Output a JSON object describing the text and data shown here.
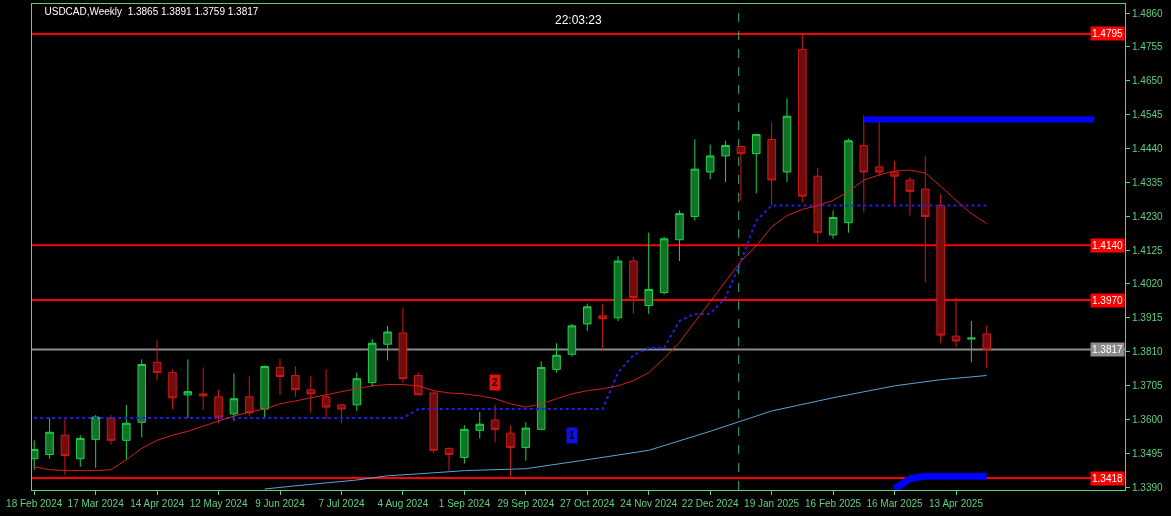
{
  "chart_data": {
    "type": "candlestick",
    "title": "USDCAD,Weekly  1.3865 1.3891 1.3759 1.3817",
    "annotations": [
      "22:03:23",
      {
        "text": "2",
        "x": "2024-09-15",
        "y": 1.3714
      },
      {
        "text": "1",
        "x": "2024-10-20",
        "y": 1.3551
      }
    ],
    "x": [
      "2024-02-18",
      "2024-02-25",
      "2024-03-03",
      "2024-03-10",
      "2024-03-17",
      "2024-03-24",
      "2024-03-31",
      "2024-04-07",
      "2024-04-14",
      "2024-04-21",
      "2024-04-28",
      "2024-05-05",
      "2024-05-12",
      "2024-05-19",
      "2024-05-26",
      "2024-06-02",
      "2024-06-09",
      "2024-06-16",
      "2024-06-23",
      "2024-06-30",
      "2024-07-07",
      "2024-07-14",
      "2024-07-21",
      "2024-07-28",
      "2024-08-04",
      "2024-08-11",
      "2024-08-18",
      "2024-08-25",
      "2024-09-01",
      "2024-09-08",
      "2024-09-15",
      "2024-09-22",
      "2024-09-29",
      "2024-10-06",
      "2024-10-13",
      "2024-10-20",
      "2024-10-27",
      "2024-11-03",
      "2024-11-10",
      "2024-11-17",
      "2024-11-24",
      "2024-12-01",
      "2024-12-08",
      "2024-12-15",
      "2024-12-22",
      "2024-12-29",
      "2025-01-05",
      "2025-01-12",
      "2025-01-19",
      "2025-01-26",
      "2025-02-02",
      "2025-02-09",
      "2025-02-16",
      "2025-02-23",
      "2025-03-02",
      "2025-03-09",
      "2025-03-16",
      "2025-03-23",
      "2025-03-30",
      "2025-04-06",
      "2025-04-13",
      "2025-04-20",
      "2025-04-27"
    ],
    "ohlc": [
      [
        1.3478,
        1.3535,
        1.3444,
        1.3507
      ],
      [
        1.3491,
        1.3604,
        1.3478,
        1.356
      ],
      [
        1.3551,
        1.3604,
        1.3428,
        1.3488
      ],
      [
        1.3478,
        1.3551,
        1.3453,
        1.3541
      ],
      [
        1.3538,
        1.3613,
        1.345,
        1.3607
      ],
      [
        1.3604,
        1.3613,
        1.3522,
        1.3535
      ],
      [
        1.3535,
        1.3645,
        1.3475,
        1.3588
      ],
      [
        1.3591,
        1.3786,
        1.3544,
        1.377
      ],
      [
        1.3777,
        1.3846,
        1.372,
        1.3745
      ],
      [
        1.3745,
        1.3755,
        1.3632,
        1.3667
      ],
      [
        1.3676,
        1.3786,
        1.3604,
        1.3686
      ],
      [
        1.3679,
        1.3761,
        1.3629,
        1.3673
      ],
      [
        1.367,
        1.3692,
        1.3588,
        1.3607
      ],
      [
        1.3617,
        1.3742,
        1.3595,
        1.3664
      ],
      [
        1.367,
        1.3733,
        1.361,
        1.362
      ],
      [
        1.3632,
        1.3767,
        1.3601,
        1.3764
      ],
      [
        1.3761,
        1.3789,
        1.3676,
        1.3733
      ],
      [
        1.3736,
        1.3764,
        1.367,
        1.3692
      ],
      [
        1.3692,
        1.3733,
        1.362,
        1.3679
      ],
      [
        1.367,
        1.3755,
        1.3601,
        1.3638
      ],
      [
        1.3645,
        1.3648,
        1.3588,
        1.3632
      ],
      [
        1.3645,
        1.3745,
        1.3626,
        1.3726
      ],
      [
        1.3714,
        1.3849,
        1.3701,
        1.3836
      ],
      [
        1.3833,
        1.389,
        1.3783,
        1.3871
      ],
      [
        1.3868,
        1.3946,
        1.3714,
        1.3726
      ],
      [
        1.3736,
        1.3745,
        1.3676,
        1.3676
      ],
      [
        1.3682,
        1.3689,
        1.3494,
        1.3504
      ],
      [
        1.351,
        1.3513,
        1.3441,
        1.3491
      ],
      [
        1.3482,
        1.3582,
        1.3463,
        1.3569
      ],
      [
        1.3566,
        1.3623,
        1.3541,
        1.3585
      ],
      [
        1.3598,
        1.3645,
        1.3529,
        1.3569
      ],
      [
        1.3557,
        1.3582,
        1.3422,
        1.3513
      ],
      [
        1.3513,
        1.3591,
        1.3472,
        1.3573
      ],
      [
        1.3569,
        1.378,
        1.3569,
        1.3761
      ],
      [
        1.3755,
        1.3836,
        1.3745,
        1.3799
      ],
      [
        1.3802,
        1.3896,
        1.3795,
        1.389
      ],
      [
        1.3896,
        1.3959,
        1.3874,
        1.3949
      ],
      [
        1.3921,
        1.3959,
        1.3817,
        1.3912
      ],
      [
        1.3915,
        1.4106,
        1.3905,
        1.4091
      ],
      [
        1.4091,
        1.4103,
        1.3927,
        1.3978
      ],
      [
        1.3953,
        1.4179,
        1.3927,
        1.4003
      ],
      [
        1.3993,
        1.4166,
        1.3987,
        1.416
      ],
      [
        1.4157,
        1.4248,
        1.4091,
        1.4238
      ],
      [
        1.4229,
        1.4468,
        1.4216,
        1.4376
      ],
      [
        1.4367,
        1.4452,
        1.4345,
        1.4417
      ],
      [
        1.4417,
        1.4464,
        1.4336,
        1.4449
      ],
      [
        1.4446,
        1.4449,
        1.4279,
        1.4424
      ],
      [
        1.4424,
        1.4486,
        1.4301,
        1.4483
      ],
      [
        1.4468,
        1.4521,
        1.4263,
        1.4342
      ],
      [
        1.4367,
        1.4596,
        1.4336,
        1.454
      ],
      [
        1.4747,
        1.4797,
        1.4273,
        1.4292
      ],
      [
        1.4354,
        1.438,
        1.4147,
        1.4179
      ],
      [
        1.4172,
        1.4248,
        1.416,
        1.4226
      ],
      [
        1.421,
        1.4471,
        1.4179,
        1.4464
      ],
      [
        1.4449,
        1.4543,
        1.4241,
        1.4367
      ],
      [
        1.4383,
        1.4524,
        1.4354,
        1.4367
      ],
      [
        1.4367,
        1.4402,
        1.426,
        1.4354
      ],
      [
        1.4342,
        1.4351,
        1.4232,
        1.4307
      ],
      [
        1.4314,
        1.4417,
        1.4025,
        1.4229
      ],
      [
        1.4263,
        1.4298,
        1.3836,
        1.3861
      ],
      [
        1.3858,
        1.3978,
        1.3824,
        1.3843
      ],
      [
        1.3849,
        1.3905,
        1.3777,
        1.3852
      ],
      [
        1.3865,
        1.3891,
        1.3759,
        1.3817
      ]
    ],
    "colors": [
      "#1fd14a",
      "#1fd14a",
      "#d01818",
      "#1fd14a",
      "#1fd14a",
      "#d01818",
      "#1fd14a",
      "#1fd14a",
      "#d01818",
      "#d01818",
      "#1fd14a",
      "#d01818",
      "#d01818",
      "#1fd14a",
      "#d01818",
      "#1fd14a",
      "#d01818",
      "#d01818",
      "#d01818",
      "#d01818",
      "#d01818",
      "#1fd14a",
      "#1fd14a",
      "#1fd14a",
      "#d01818",
      "#d01818",
      "#d01818",
      "#d01818",
      "#1fd14a",
      "#1fd14a",
      "#d01818",
      "#d01818",
      "#1fd14a",
      "#1fd14a",
      "#1fd14a",
      "#1fd14a",
      "#1fd14a",
      "#d01818",
      "#1fd14a",
      "#d01818",
      "#1fd14a",
      "#1fd14a",
      "#1fd14a",
      "#1fd14a",
      "#1fd14a",
      "#1fd14a",
      "#d01818",
      "#1fd14a",
      "#d01818",
      "#1fd14a",
      "#d01818",
      "#d01818",
      "#1fd14a",
      "#1fd14a",
      "#d01818",
      "#d01818",
      "#d01818",
      "#d01818",
      "#d01818",
      "#d01818",
      "#d01818",
      "#1fd14a",
      "#d01818"
    ],
    "series": [
      {
        "type": "line",
        "color": "#2020e0",
        "line_style": "dotted",
        "values": [
          1.3604,
          1.3604,
          1.3604,
          1.3604,
          1.3604,
          1.3604,
          1.3604,
          1.3604,
          1.3604,
          1.3604,
          1.3604,
          1.3604,
          1.3604,
          1.3604,
          1.3604,
          1.3604,
          1.3604,
          1.3604,
          1.3604,
          1.3604,
          1.3604,
          1.3604,
          1.3604,
          1.3604,
          1.3604,
          1.3632,
          1.3632,
          1.3632,
          1.3632,
          1.3632,
          1.3632,
          1.3632,
          1.3632,
          1.3632,
          1.3632,
          1.3632,
          1.3632,
          1.3632,
          1.3745,
          1.3799,
          1.3821,
          1.3821,
          1.3905,
          1.3927,
          1.3927,
          1.3978,
          1.4091,
          1.4216,
          1.4263,
          1.4263,
          1.4263,
          1.4263,
          1.4263,
          1.4263,
          1.4263,
          1.4263,
          1.4263,
          1.4263,
          1.4263,
          1.4263,
          1.4263,
          1.4263,
          1.4263
        ]
      },
      {
        "type": "line",
        "color": "#d42020",
        "values": [
          1.3453,
          1.3444,
          1.3441,
          1.3441,
          1.3441,
          1.3444,
          1.3475,
          1.351,
          1.3535,
          1.3551,
          1.3563,
          1.3579,
          1.3595,
          1.361,
          1.3623,
          1.3632,
          1.3648,
          1.3657,
          1.3667,
          1.3676,
          1.3686,
          1.3695,
          1.3704,
          1.3708,
          1.3708,
          1.3704,
          1.3689,
          1.3682,
          1.3679,
          1.3673,
          1.3664,
          1.3648,
          1.3638,
          1.3648,
          1.3664,
          1.3679,
          1.3689,
          1.3695,
          1.3704,
          1.372,
          1.3745,
          1.3789,
          1.3839,
          1.3902,
          1.3965,
          1.4028,
          1.4091,
          1.4138,
          1.4197,
          1.4232,
          1.4251,
          1.4263,
          1.4279,
          1.4307,
          1.4342,
          1.4358,
          1.437,
          1.4373,
          1.4364,
          1.4323,
          1.4279,
          1.4238,
          1.4207
        ]
      },
      {
        "type": "line",
        "color": "#5ba3d9",
        "x": [
          "2024-06-02",
          "2024-06-16",
          "2024-06-30",
          "2024-07-14",
          "2024-07-28",
          "2024-08-11",
          "2024-09-01",
          "2024-09-29",
          "2024-10-27",
          "2024-11-24",
          "2024-12-22",
          "2025-01-19",
          "2025-02-16",
          "2025-03-16",
          "2025-04-06",
          "2025-04-27"
        ],
        "values": [
          1.3384,
          1.3394,
          1.3403,
          1.3412,
          1.3425,
          1.3431,
          1.3441,
          1.3447,
          1.3475,
          1.3504,
          1.3563,
          1.3626,
          1.3667,
          1.3704,
          1.3723,
          1.3736
        ]
      },
      {
        "type": "line",
        "color": "#0000ff",
        "x": [
          "2025-03-02",
          "2025-06-15"
        ],
        "values": [
          1.453,
          1.453
        ]
      },
      {
        "type": "line",
        "color": "#0000ff",
        "x": [
          "2025-03-16",
          "2025-03-23",
          "2025-03-30",
          "2025-04-27"
        ],
        "values": [
          1.3384,
          1.3416,
          1.3424,
          1.3424
        ]
      }
    ],
    "ref_lines": [
      {
        "axis": "y",
        "value": 1.4795,
        "label": "1.4795",
        "color": "#ff0000"
      },
      {
        "axis": "y",
        "value": 1.414,
        "label": "1.4140",
        "color": "#ff0000"
      },
      {
        "axis": "y",
        "value": 1.397,
        "label": "1.3970",
        "color": "#ff0000"
      },
      {
        "axis": "y",
        "value": 1.3817,
        "label": "1.3817",
        "color": "#8c8c8c"
      },
      {
        "axis": "y",
        "value": 1.3418,
        "label": "1.3418",
        "color": "#ff0000"
      },
      {
        "axis": "x",
        "value": "2025-01-04",
        "color": "#3cb371",
        "line_style": "dashed"
      }
    ],
    "xlim": [
      "2024-02-17",
      "2025-06-29"
    ],
    "xticks": [
      {
        "value": "2024-02-18",
        "label": "18 Feb 2024"
      },
      {
        "value": "2024-03-17",
        "label": "17 Mar 2024"
      },
      {
        "value": "2024-04-14",
        "label": "14 Apr 2024"
      },
      {
        "value": "2024-05-12",
        "label": "12 May 2024"
      },
      {
        "value": "2024-06-09",
        "label": "9 Jun 2024"
      },
      {
        "value": "2024-07-07",
        "label": "7 Jul 2024"
      },
      {
        "value": "2024-08-04",
        "label": "4 Aug 2024"
      },
      {
        "value": "2024-09-01",
        "label": "1 Sep 2024"
      },
      {
        "value": "2024-09-29",
        "label": "29 Sep 2024"
      },
      {
        "value": "2024-10-27",
        "label": "27 Oct 2024"
      },
      {
        "value": "2024-11-24",
        "label": "24 Nov 2024"
      },
      {
        "value": "2024-12-22",
        "label": "22 Dec 2024"
      },
      {
        "value": "2025-01-19",
        "label": "19 Jan 2025"
      },
      {
        "value": "2025-02-16",
        "label": "16 Feb 2025"
      },
      {
        "value": "2025-03-16",
        "label": "16 Mar 2025"
      },
      {
        "value": "2025-04-13",
        "label": "13 Apr 2025"
      }
    ],
    "ylim": [
      1.3381,
      1.4888
    ],
    "yticks": [
      {
        "value": 1.339,
        "label": "1.3390"
      },
      {
        "value": 1.3495,
        "label": "1.3495"
      },
      {
        "value": 1.36,
        "label": "1.3600"
      },
      {
        "value": 1.3705,
        "label": "1.3705"
      },
      {
        "value": 1.381,
        "label": "1.3810"
      },
      {
        "value": 1.3915,
        "label": "1.3915"
      },
      {
        "value": 1.402,
        "label": "1.4020"
      },
      {
        "value": 1.4125,
        "label": "1.4125"
      },
      {
        "value": 1.423,
        "label": "1.4230"
      },
      {
        "value": 1.4335,
        "label": "1.4335"
      },
      {
        "value": 1.444,
        "label": "1.4440"
      },
      {
        "value": 1.4545,
        "label": "1.4545"
      },
      {
        "value": 1.465,
        "label": "1.4650"
      },
      {
        "value": 1.4755,
        "label": "1.4755"
      },
      {
        "value": 1.486,
        "label": "1.4860"
      }
    ],
    "tick_labels": "xy"
  }
}
